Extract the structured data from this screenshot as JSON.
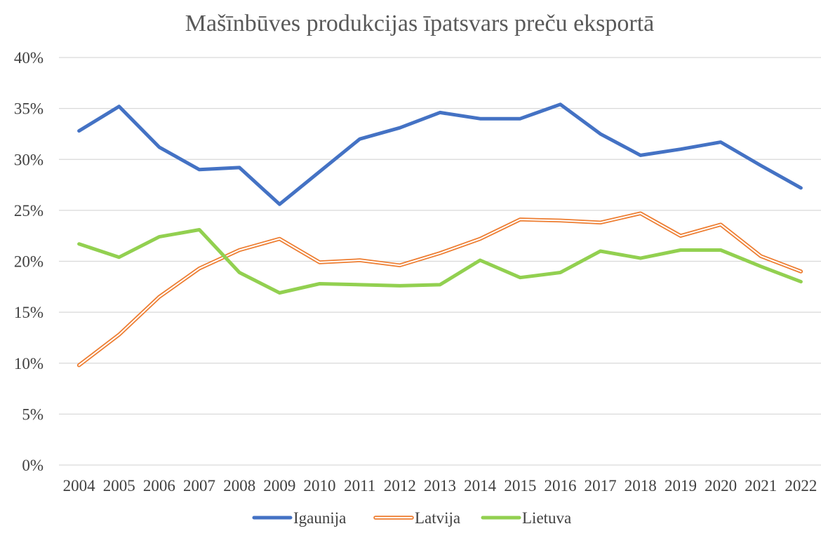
{
  "chart_data": {
    "type": "line",
    "title": "Mašīnbūves produkcijas īpatsvars preču eksportā",
    "xlabel": "",
    "ylabel": "",
    "categories": [
      "2004",
      "2005",
      "2006",
      "2007",
      "2008",
      "2009",
      "2010",
      "2011",
      "2012",
      "2013",
      "2014",
      "2015",
      "2016",
      "2017",
      "2018",
      "2019",
      "2020",
      "2021",
      "2022"
    ],
    "ylim": [
      0,
      40
    ],
    "y_ticks": [
      0,
      5,
      10,
      15,
      20,
      25,
      30,
      35,
      40
    ],
    "y_tick_labels": [
      "0%",
      "5%",
      "10%",
      "15%",
      "20%",
      "25%",
      "30%",
      "35%",
      "40%"
    ],
    "grid": true,
    "legend_position": "bottom",
    "series": [
      {
        "name": "Igaunija",
        "color": "#4472c4",
        "style": "solid",
        "values": [
          32.8,
          35.2,
          31.2,
          29.0,
          29.2,
          25.6,
          28.8,
          32.0,
          33.1,
          34.6,
          34.0,
          34.0,
          35.4,
          32.5,
          30.4,
          31.0,
          31.7,
          29.4,
          27.2
        ]
      },
      {
        "name": "Latvija",
        "color": "#ed7d31",
        "style": "double",
        "values": [
          9.8,
          12.8,
          16.5,
          19.3,
          21.1,
          22.2,
          19.9,
          20.1,
          19.6,
          20.8,
          22.2,
          24.1,
          24.0,
          23.8,
          24.7,
          22.5,
          23.6,
          20.5,
          19.0
        ]
      },
      {
        "name": "Lietuva",
        "color": "#92d050",
        "style": "solid",
        "values": [
          21.7,
          20.4,
          22.4,
          23.1,
          18.9,
          16.9,
          17.8,
          17.7,
          17.6,
          17.7,
          20.1,
          18.4,
          18.9,
          21.0,
          20.3,
          21.1,
          21.1,
          19.5,
          18.0
        ]
      }
    ]
  }
}
